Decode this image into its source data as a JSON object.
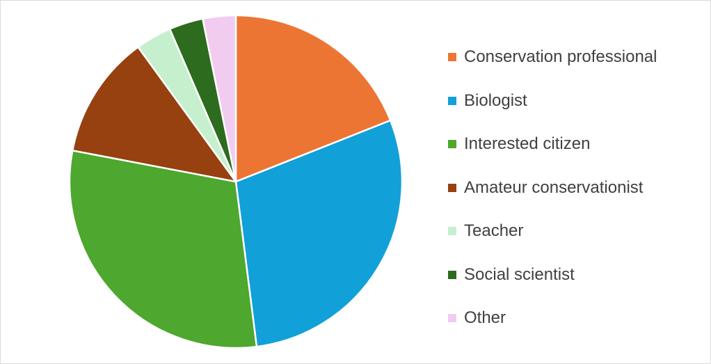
{
  "chart_data": {
    "type": "pie",
    "title": "",
    "legend_position": "right",
    "start_angle_deg": 0,
    "direction": "clockwise",
    "slices": [
      {
        "label": "Conservation professional",
        "value": 19,
        "color": "#ED7534"
      },
      {
        "label": "Biologist",
        "value": 29,
        "color": "#12A0D8"
      },
      {
        "label": "Interested citizen",
        "value": 30,
        "color": "#4EA72E"
      },
      {
        "label": "Amateur conservationist",
        "value": 12,
        "color": "#974010"
      },
      {
        "label": "Teacher",
        "value": 3.5,
        "color": "#C6EFCE"
      },
      {
        "label": "Social scientist",
        "value": 3.3,
        "color": "#2D6B1E"
      },
      {
        "label": "Other",
        "value": 3.2,
        "color": "#F1CCF0"
      }
    ]
  }
}
